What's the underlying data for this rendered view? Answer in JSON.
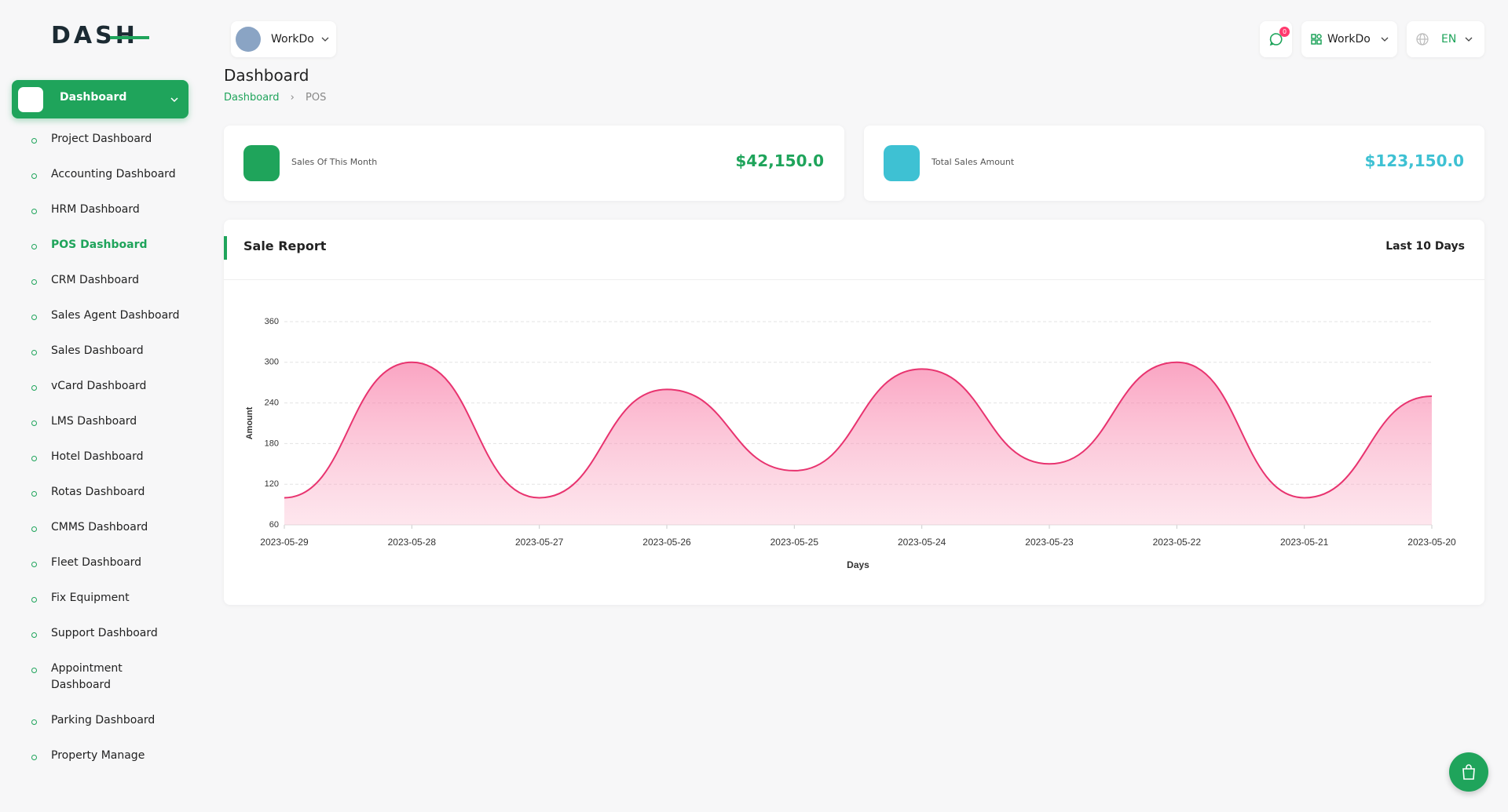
{
  "brand": "DASH",
  "sidebar": {
    "group": "Dashboard",
    "items": [
      {
        "label": "Project Dashboard"
      },
      {
        "label": "Accounting Dashboard"
      },
      {
        "label": "HRM Dashboard"
      },
      {
        "label": "POS Dashboard",
        "active": true
      },
      {
        "label": "CRM Dashboard"
      },
      {
        "label": "Sales Agent Dashboard"
      },
      {
        "label": "Sales Dashboard"
      },
      {
        "label": "vCard Dashboard"
      },
      {
        "label": "LMS Dashboard"
      },
      {
        "label": "Hotel Dashboard"
      },
      {
        "label": "Rotas Dashboard"
      },
      {
        "label": "CMMS Dashboard"
      },
      {
        "label": "Fleet Dashboard"
      },
      {
        "label": "Fix Equipment"
      },
      {
        "label": "Support Dashboard"
      },
      {
        "label": "Appointment Dashboard"
      },
      {
        "label": "Parking Dashboard"
      },
      {
        "label": "Property Manage"
      }
    ]
  },
  "topbar": {
    "workspace": "WorkDo",
    "notifications": "0",
    "user": "WorkDo",
    "language": "EN"
  },
  "page": {
    "title": "Dashboard",
    "breadcrumb": [
      "Dashboard",
      "POS"
    ]
  },
  "cards": [
    {
      "label": "Sales Of This Month",
      "value": "$42,150.0",
      "color": "#1fa45b"
    },
    {
      "label": "Total Sales Amount",
      "value": "$123,150.0",
      "color": "#3ec1d3"
    }
  ],
  "report": {
    "title": "Sale Report",
    "period": "Last 10 Days"
  },
  "chart_data": {
    "type": "area",
    "x_label": "Days",
    "y_label": "Amount",
    "categories": [
      "2023-05-29",
      "2023-05-28",
      "2023-05-27",
      "2023-05-26",
      "2023-05-25",
      "2023-05-24",
      "2023-05-23",
      "2023-05-22",
      "2023-05-21",
      "2023-05-20"
    ],
    "values": [
      100,
      300,
      100,
      260,
      140,
      290,
      150,
      300,
      100,
      250
    ],
    "color": "#e8336f",
    "ylim": [
      60,
      360
    ],
    "yticks": [
      60,
      120,
      180,
      240,
      300,
      360
    ],
    "grid": true
  }
}
